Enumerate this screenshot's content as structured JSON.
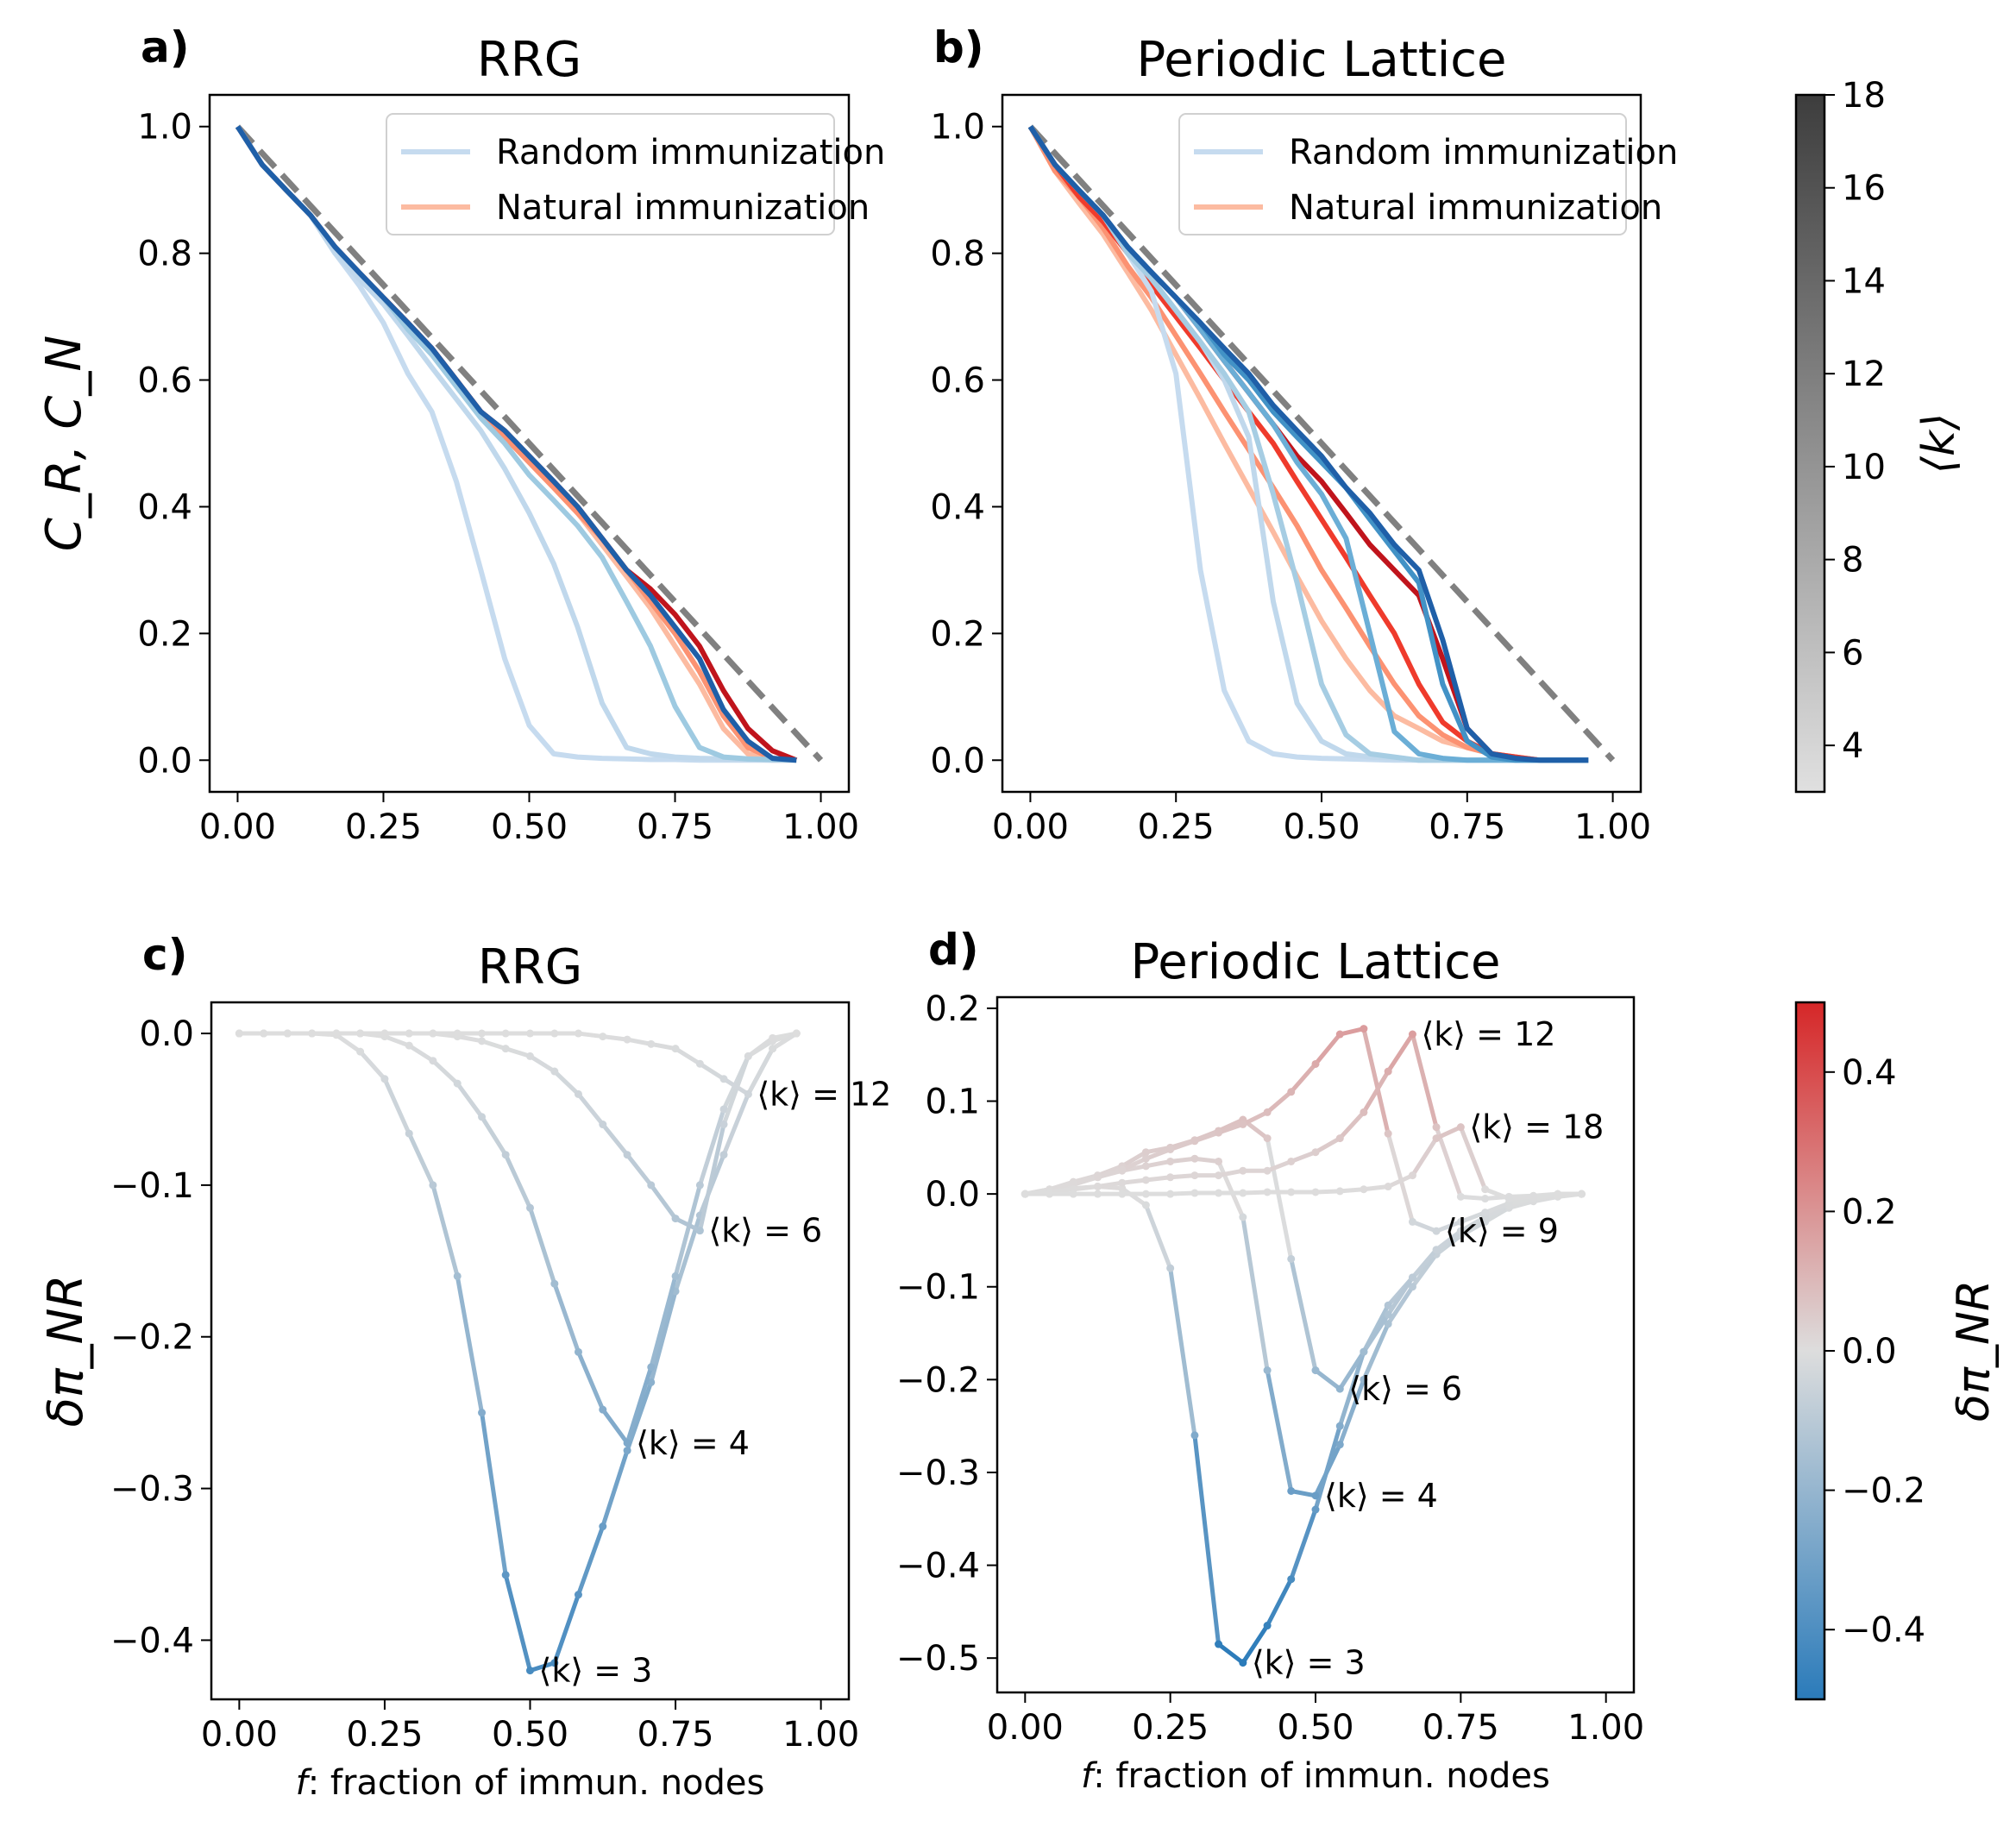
{
  "chart_data": [
    {
      "panel_label": "a)",
      "title": "RRG",
      "type": "line",
      "xlabel": "",
      "ylabel": "C_R, C_N",
      "xlim": [
        -0.048,
        1.048
      ],
      "ylim": [
        -0.05,
        1.05
      ],
      "xticks": [
        "0.00",
        "0.25",
        "0.50",
        "0.75",
        "1.00"
      ],
      "yticks": [
        "0.0",
        "0.2",
        "0.4",
        "0.6",
        "0.8",
        "1.0"
      ],
      "grid": false,
      "legend": {
        "placement": "upper-right",
        "entries": [
          {
            "label": "Random immunization",
            "color": "#c6dbef"
          },
          {
            "label": "Natural immunization",
            "color": "#fcbba1"
          }
        ]
      },
      "reference_line": {
        "x": [
          0,
          1
        ],
        "y": [
          1,
          0
        ],
        "style": "dashed",
        "color": "#808080"
      },
      "x": [
        0,
        0.042,
        0.083,
        0.125,
        0.167,
        0.208,
        0.25,
        0.292,
        0.333,
        0.375,
        0.417,
        0.458,
        0.5,
        0.542,
        0.583,
        0.625,
        0.667,
        0.708,
        0.75,
        0.792,
        0.833,
        0.875,
        0.917,
        0.958
      ],
      "series": [
        {
          "group": "natural",
          "k": 3,
          "color": "#fcbba1",
          "values": [
            1,
            0.94,
            0.9,
            0.86,
            0.81,
            0.77,
            0.73,
            0.69,
            0.65,
            0.6,
            0.55,
            0.51,
            0.47,
            0.43,
            0.39,
            0.34,
            0.29,
            0.24,
            0.18,
            0.12,
            0.05,
            0.01,
            0,
            0
          ]
        },
        {
          "group": "natural",
          "k": 6,
          "color": "#fc9272",
          "values": [
            1,
            0.94,
            0.9,
            0.86,
            0.81,
            0.77,
            0.73,
            0.69,
            0.65,
            0.6,
            0.55,
            0.51,
            0.47,
            0.43,
            0.39,
            0.35,
            0.3,
            0.25,
            0.2,
            0.14,
            0.07,
            0.02,
            0.003,
            0
          ]
        },
        {
          "group": "natural",
          "k": 18,
          "color": "#c0141c",
          "values": [
            1,
            0.94,
            0.9,
            0.86,
            0.81,
            0.77,
            0.73,
            0.69,
            0.65,
            0.6,
            0.55,
            0.52,
            0.48,
            0.44,
            0.4,
            0.35,
            0.3,
            0.27,
            0.23,
            0.18,
            0.11,
            0.05,
            0.015,
            0
          ]
        },
        {
          "group": "random",
          "k": 3,
          "color": "#c6dbef",
          "values": [
            1,
            0.94,
            0.9,
            0.86,
            0.8,
            0.75,
            0.69,
            0.61,
            0.55,
            0.44,
            0.3,
            0.16,
            0.055,
            0.01,
            0.005,
            0.003,
            0.002,
            0.001,
            0.001,
            0,
            0,
            0,
            0,
            0
          ]
        },
        {
          "group": "random",
          "k": 4,
          "color": "#c0d8ec",
          "values": [
            1,
            0.94,
            0.9,
            0.86,
            0.8,
            0.76,
            0.72,
            0.67,
            0.62,
            0.57,
            0.52,
            0.46,
            0.39,
            0.31,
            0.21,
            0.09,
            0.02,
            0.01,
            0.005,
            0.003,
            0.002,
            0.001,
            0,
            0
          ]
        },
        {
          "group": "random",
          "k": 6,
          "color": "#9ecae1",
          "values": [
            1,
            0.94,
            0.9,
            0.86,
            0.81,
            0.77,
            0.73,
            0.68,
            0.64,
            0.59,
            0.54,
            0.5,
            0.45,
            0.41,
            0.37,
            0.32,
            0.25,
            0.18,
            0.085,
            0.02,
            0.005,
            0.002,
            0.001,
            0
          ]
        },
        {
          "group": "random",
          "k": 18,
          "color": "#1f5fa8",
          "values": [
            1,
            0.94,
            0.9,
            0.86,
            0.81,
            0.77,
            0.73,
            0.69,
            0.65,
            0.6,
            0.55,
            0.52,
            0.48,
            0.44,
            0.4,
            0.35,
            0.3,
            0.26,
            0.21,
            0.16,
            0.08,
            0.03,
            0.003,
            0
          ]
        }
      ]
    },
    {
      "panel_label": "b)",
      "title": "Periodic Lattice",
      "type": "line",
      "xlabel": "",
      "ylabel": "",
      "xlim": [
        -0.048,
        1.048
      ],
      "ylim": [
        -0.05,
        1.05
      ],
      "xticks": [
        "0.00",
        "0.25",
        "0.50",
        "0.75",
        "1.00"
      ],
      "yticks": [
        "0.0",
        "0.2",
        "0.4",
        "0.6",
        "0.8",
        "1.0"
      ],
      "grid": false,
      "legend": {
        "placement": "upper-right",
        "entries": [
          {
            "label": "Random immunization",
            "color": "#c6dbef"
          },
          {
            "label": "Natural immunization",
            "color": "#fcbba1"
          }
        ]
      },
      "reference_line": {
        "x": [
          0,
          1
        ],
        "y": [
          1,
          0
        ],
        "style": "dashed",
        "color": "#808080"
      },
      "x": [
        0,
        0.042,
        0.083,
        0.125,
        0.167,
        0.208,
        0.25,
        0.292,
        0.333,
        0.375,
        0.417,
        0.458,
        0.5,
        0.542,
        0.583,
        0.625,
        0.667,
        0.708,
        0.75,
        0.792,
        0.833,
        0.875,
        0.917,
        0.958
      ],
      "series": [
        {
          "group": "natural",
          "k": 3,
          "color": "#fcbba1",
          "values": [
            1,
            0.93,
            0.88,
            0.83,
            0.77,
            0.71,
            0.64,
            0.57,
            0.5,
            0.43,
            0.36,
            0.29,
            0.22,
            0.16,
            0.11,
            0.07,
            0.05,
            0.03,
            0.02,
            0.01,
            0.005,
            0,
            0,
            0
          ]
        },
        {
          "group": "natural",
          "k": 6,
          "color": "#fc9272",
          "values": [
            1,
            0.93,
            0.89,
            0.84,
            0.78,
            0.73,
            0.67,
            0.61,
            0.55,
            0.49,
            0.43,
            0.37,
            0.3,
            0.24,
            0.18,
            0.12,
            0.07,
            0.04,
            0.02,
            0.01,
            0.005,
            0,
            0,
            0
          ]
        },
        {
          "group": "natural",
          "k": 12,
          "color": "#ef3b2c",
          "values": [
            1,
            0.94,
            0.89,
            0.85,
            0.8,
            0.75,
            0.7,
            0.65,
            0.6,
            0.55,
            0.5,
            0.44,
            0.38,
            0.32,
            0.26,
            0.2,
            0.12,
            0.06,
            0.03,
            0.01,
            0.005,
            0,
            0,
            0
          ]
        },
        {
          "group": "natural",
          "k": 18,
          "color": "#c0141c",
          "values": [
            1,
            0.94,
            0.9,
            0.86,
            0.81,
            0.77,
            0.73,
            0.68,
            0.63,
            0.58,
            0.53,
            0.48,
            0.44,
            0.39,
            0.34,
            0.3,
            0.26,
            0.16,
            0.05,
            0.01,
            0.003,
            0,
            0,
            0
          ]
        },
        {
          "group": "random",
          "k": 3,
          "color": "#c6dbef",
          "values": [
            1,
            0.94,
            0.9,
            0.86,
            0.8,
            0.74,
            0.61,
            0.3,
            0.11,
            0.03,
            0.01,
            0.005,
            0.003,
            0.002,
            0.001,
            0,
            0,
            0,
            0,
            0,
            0,
            0,
            0,
            0
          ]
        },
        {
          "group": "random",
          "k": 4,
          "color": "#c0d8ec",
          "values": [
            1,
            0.94,
            0.9,
            0.86,
            0.8,
            0.76,
            0.71,
            0.66,
            0.6,
            0.51,
            0.25,
            0.09,
            0.03,
            0.01,
            0.005,
            0.003,
            0,
            0,
            0,
            0,
            0,
            0,
            0,
            0
          ]
        },
        {
          "group": "random",
          "k": 6,
          "color": "#a6cde3",
          "values": [
            1,
            0.94,
            0.9,
            0.86,
            0.8,
            0.76,
            0.71,
            0.66,
            0.61,
            0.55,
            0.42,
            0.28,
            0.12,
            0.04,
            0.01,
            0.005,
            0,
            0,
            0,
            0,
            0,
            0,
            0,
            0
          ]
        },
        {
          "group": "random",
          "k": 9,
          "color": "#6baed6",
          "values": [
            1,
            0.94,
            0.9,
            0.86,
            0.81,
            0.77,
            0.73,
            0.68,
            0.63,
            0.58,
            0.53,
            0.47,
            0.42,
            0.35,
            0.2,
            0.045,
            0.01,
            0.003,
            0,
            0,
            0,
            0,
            0,
            0
          ]
        },
        {
          "group": "random",
          "k": 12,
          "color": "#4292c6",
          "values": [
            1,
            0.94,
            0.9,
            0.86,
            0.81,
            0.77,
            0.73,
            0.69,
            0.64,
            0.6,
            0.55,
            0.51,
            0.47,
            0.43,
            0.38,
            0.33,
            0.28,
            0.12,
            0.03,
            0.005,
            0,
            0,
            0,
            0
          ]
        },
        {
          "group": "random",
          "k": 18,
          "color": "#1f5fa8",
          "values": [
            1,
            0.94,
            0.9,
            0.86,
            0.81,
            0.77,
            0.73,
            0.69,
            0.65,
            0.61,
            0.56,
            0.52,
            0.48,
            0.43,
            0.39,
            0.34,
            0.3,
            0.19,
            0.05,
            0.01,
            0.003,
            0,
            0,
            0
          ]
        }
      ]
    },
    {
      "panel_label": "c)",
      "title": "RRG",
      "type": "line",
      "xlabel": "f: fraction of immun. nodes",
      "ylabel": "δπ_NR",
      "xlim": [
        -0.048,
        1.048
      ],
      "ylim": [
        -0.439,
        0.0205
      ],
      "xticks": [
        "0.00",
        "0.25",
        "0.50",
        "0.75",
        "1.00"
      ],
      "yticks": [
        "−0.4",
        "−0.3",
        "−0.2",
        "−0.1",
        "0.0"
      ],
      "grid": false,
      "color_by_value": true,
      "x": [
        0,
        0.042,
        0.083,
        0.125,
        0.167,
        0.208,
        0.25,
        0.292,
        0.333,
        0.375,
        0.417,
        0.458,
        0.5,
        0.542,
        0.583,
        0.625,
        0.667,
        0.708,
        0.75,
        0.792,
        0.833,
        0.875,
        0.917,
        0.958
      ],
      "series": [
        {
          "k": 3,
          "label": "⟨k⟩ = 3",
          "values": [
            0,
            0,
            0,
            0,
            -0.001,
            -0.012,
            -0.03,
            -0.066,
            -0.1,
            -0.16,
            -0.25,
            -0.357,
            -0.42,
            -0.415,
            -0.37,
            -0.325,
            -0.275,
            -0.23,
            -0.17,
            -0.12,
            -0.08,
            -0.04,
            -0.01,
            0
          ]
        },
        {
          "k": 4,
          "label": "⟨k⟩ = 4",
          "values": [
            0,
            0,
            0,
            0,
            0,
            0,
            -0.002,
            -0.008,
            -0.018,
            -0.033,
            -0.055,
            -0.08,
            -0.115,
            -0.165,
            -0.21,
            -0.248,
            -0.27,
            -0.22,
            -0.16,
            -0.1,
            -0.05,
            -0.015,
            -0.005,
            0
          ]
        },
        {
          "k": 6,
          "label": "⟨k⟩ = 6",
          "values": [
            0,
            0,
            0,
            0,
            0,
            0,
            0,
            0,
            0,
            -0.002,
            -0.005,
            -0.01,
            -0.015,
            -0.025,
            -0.04,
            -0.06,
            -0.08,
            -0.1,
            -0.122,
            -0.13,
            -0.06,
            -0.015,
            -0.003,
            0
          ]
        },
        {
          "k": 12,
          "label": "⟨k⟩ = 12",
          "values": [
            0,
            0,
            0,
            0,
            0,
            0,
            0,
            0,
            0,
            0,
            0,
            0,
            0,
            0,
            0,
            -0.002,
            -0.004,
            -0.007,
            -0.01,
            -0.02,
            -0.03,
            -0.04,
            -0.01,
            0
          ]
        }
      ]
    },
    {
      "panel_label": "d)",
      "title": "Periodic Lattice",
      "type": "line",
      "xlabel": "f: fraction of immun. nodes",
      "ylabel": "",
      "xlim": [
        -0.048,
        1.048
      ],
      "ylim": [
        -0.537,
        0.212
      ],
      "xticks": [
        "0.00",
        "0.25",
        "0.50",
        "0.75",
        "1.00"
      ],
      "yticks": [
        "−0.5",
        "−0.4",
        "−0.3",
        "−0.2",
        "−0.1",
        "0.0",
        "0.1",
        "0.2"
      ],
      "grid": false,
      "color_by_value": true,
      "x": [
        0,
        0.042,
        0.083,
        0.125,
        0.167,
        0.208,
        0.25,
        0.292,
        0.333,
        0.375,
        0.417,
        0.458,
        0.5,
        0.542,
        0.583,
        0.625,
        0.667,
        0.708,
        0.75,
        0.792,
        0.833,
        0.875,
        0.917,
        0.958
      ],
      "series": [
        {
          "k": 3,
          "label": "⟨k⟩ = 3",
          "values": [
            0,
            0.003,
            0.006,
            0.008,
            0.006,
            -0.012,
            -0.08,
            -0.26,
            -0.485,
            -0.505,
            -0.465,
            -0.415,
            -0.34,
            -0.25,
            -0.17,
            -0.12,
            -0.09,
            -0.065,
            -0.045,
            -0.03,
            -0.015,
            -0.008,
            -0.003,
            0
          ]
        },
        {
          "k": 4,
          "label": "⟨k⟩ = 4",
          "values": [
            0,
            0.003,
            0.01,
            0.018,
            0.025,
            0.03,
            0.035,
            0.038,
            0.035,
            -0.025,
            -0.19,
            -0.32,
            -0.325,
            -0.27,
            -0.2,
            -0.14,
            -0.1,
            -0.065,
            -0.04,
            -0.025,
            -0.01,
            -0.005,
            -0.002,
            0
          ]
        },
        {
          "k": 6,
          "label": "⟨k⟩ = 6",
          "values": [
            0,
            0.005,
            0.013,
            0.02,
            0.03,
            0.045,
            0.05,
            0.058,
            0.068,
            0.08,
            0.06,
            -0.07,
            -0.19,
            -0.21,
            -0.17,
            -0.13,
            -0.09,
            -0.06,
            -0.04,
            -0.025,
            -0.012,
            -0.005,
            -0.002,
            0
          ]
        },
        {
          "k": 9,
          "label": "⟨k⟩ = 9",
          "values": [
            0,
            0.005,
            0.012,
            0.018,
            0.026,
            0.038,
            0.048,
            0.057,
            0.066,
            0.075,
            0.088,
            0.11,
            0.14,
            0.172,
            0.178,
            0.065,
            -0.03,
            -0.04,
            -0.03,
            -0.02,
            -0.01,
            -0.005,
            0,
            0
          ]
        },
        {
          "k": 12,
          "label": "⟨k⟩ = 12",
          "values": [
            0,
            0.002,
            0.005,
            0.008,
            0.012,
            0.015,
            0.018,
            0.02,
            0.02,
            0.025,
            0.025,
            0.035,
            0.045,
            0.06,
            0.088,
            0.132,
            0.172,
            0.072,
            -0.003,
            -0.005,
            -0.003,
            -0.002,
            0,
            0
          ]
        },
        {
          "k": 18,
          "label": "⟨k⟩ = 18",
          "values": [
            0,
            0,
            0,
            0,
            0,
            0,
            0,
            0.001,
            0.001,
            0.001,
            0.002,
            0.002,
            0.002,
            0.003,
            0.005,
            0.008,
            0.02,
            0.06,
            0.072,
            0.005,
            -0.005,
            -0.003,
            -0.001,
            0
          ]
        }
      ]
    }
  ],
  "colorbars": [
    {
      "label": "⟨k⟩",
      "range": [
        3,
        18
      ],
      "ticks": [
        "4",
        "6",
        "8",
        "10",
        "12",
        "14",
        "16",
        "18"
      ],
      "colors": [
        "#e0e0e0",
        "#3d3d3d"
      ]
    },
    {
      "label": "δπ_NR",
      "range": [
        -0.5,
        0.5
      ],
      "ticks": [
        "−0.4",
        "−0.2",
        "0.0",
        "0.2",
        "0.4"
      ],
      "colors": [
        "#2b7bba",
        "#dddddd",
        "#d62728"
      ]
    }
  ]
}
